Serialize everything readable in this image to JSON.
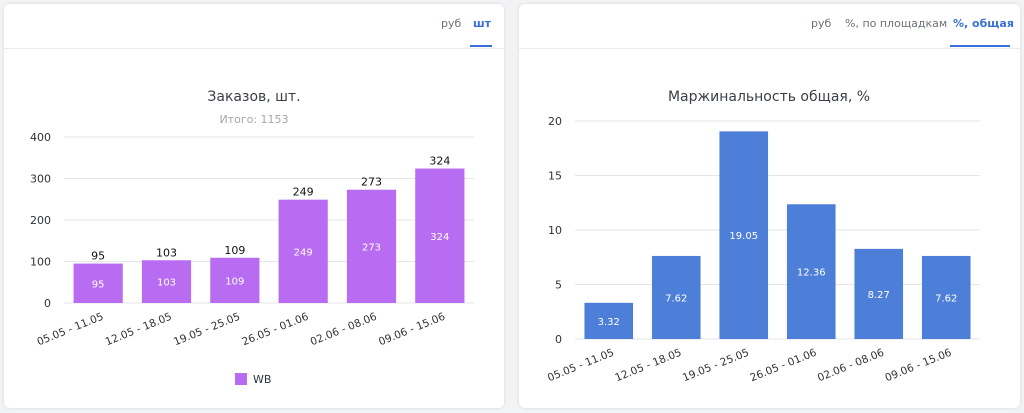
{
  "left_panel": {
    "tabs": [
      {
        "label": "руб",
        "active": false
      },
      {
        "label": "шт",
        "active": true
      }
    ]
  },
  "right_panel": {
    "tabs": [
      {
        "label": "руб",
        "active": false
      },
      {
        "label": "%, по площадкам",
        "active": false
      },
      {
        "label": "%, общая",
        "active": true
      }
    ]
  },
  "colors": {
    "purple_bar": "#b86cf2",
    "blue_bar": "#4d7fd9",
    "accent": "#3a70d6",
    "grid": "#e4e6ea"
  },
  "chart_data": [
    {
      "type": "bar",
      "title": "Заказов, шт.",
      "subtitle": "Итого: 1153",
      "categories": [
        "05.05 - 11.05",
        "12.05 - 18.05",
        "19.05 - 25.05",
        "26.05 - 01.06",
        "02.06 - 08.06",
        "09.06 - 15.06"
      ],
      "series": [
        {
          "name": "WB",
          "values": [
            95,
            103,
            109,
            249,
            273,
            324
          ]
        }
      ],
      "ylim": [
        0,
        400
      ],
      "yticks": [
        0,
        100,
        200,
        300,
        400
      ],
      "grid": true,
      "legend": "bottom-center"
    },
    {
      "type": "bar",
      "title": "Маржинальность общая, %",
      "categories": [
        "05.05 - 11.05",
        "12.05 - 18.05",
        "19.05 - 25.05",
        "26.05 - 01.06",
        "02.06 - 08.06",
        "09.06 - 15.06"
      ],
      "series": [
        {
          "values": [
            3.32,
            7.62,
            19.05,
            12.36,
            8.27,
            7.62
          ]
        }
      ],
      "ylim": [
        0,
        20
      ],
      "yticks": [
        0,
        5,
        10,
        15,
        20
      ],
      "grid": true
    }
  ]
}
